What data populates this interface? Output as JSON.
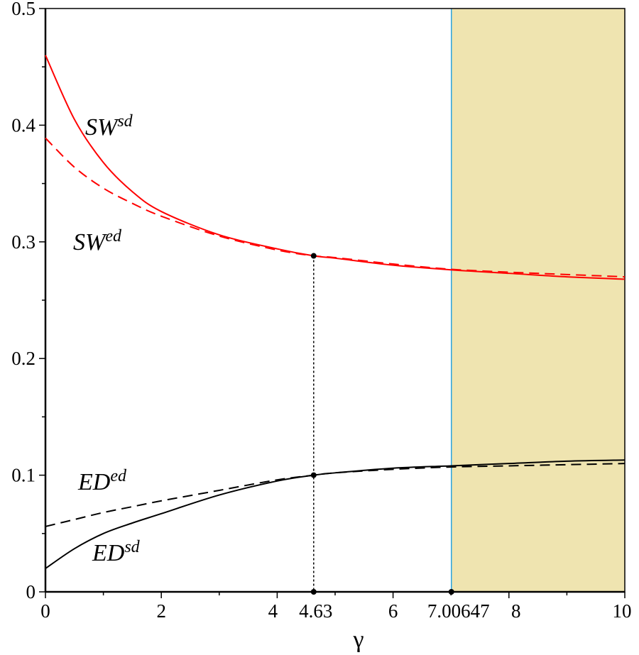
{
  "chart_data": {
    "type": "line",
    "xlabel": "γ",
    "ylabel": "",
    "xlim": [
      0,
      10
    ],
    "ylim": [
      0,
      0.5
    ],
    "grid": false,
    "x_ticks": [
      "0",
      "2",
      "4",
      "4.63",
      "6",
      "7.00647",
      "8",
      "10"
    ],
    "x_tick_values": [
      0,
      2,
      4,
      4.63,
      6,
      7.00647,
      8,
      10
    ],
    "y_ticks": [
      "0",
      "0.1",
      "0.2",
      "0.3",
      "0.4",
      "0.5"
    ],
    "y_tick_values": [
      0,
      0.1,
      0.2,
      0.3,
      0.4,
      0.5
    ],
    "x": [
      0,
      0.5,
      1,
      1.5,
      2,
      3,
      4,
      4.63,
      5,
      6,
      7,
      8,
      9,
      10
    ],
    "series": [
      {
        "name": "SW^sd",
        "base": "SW",
        "sup": "sd",
        "color": "#ff0000",
        "style": "solid",
        "values": [
          0.46,
          0.405,
          0.368,
          0.343,
          0.326,
          0.306,
          0.294,
          0.288,
          0.286,
          0.28,
          0.276,
          0.273,
          0.27,
          0.268
        ]
      },
      {
        "name": "SW^ed",
        "base": "SW",
        "sup": "ed",
        "color": "#ff0000",
        "style": "dashed",
        "values": [
          0.389,
          0.364,
          0.346,
          0.333,
          0.322,
          0.305,
          0.293,
          0.288,
          0.2865,
          0.281,
          0.2765,
          0.274,
          0.272,
          0.27
        ]
      },
      {
        "name": "ED^ed",
        "base": "ED",
        "sup": "ed",
        "color": "#000000",
        "style": "dashed",
        "values": [
          0.056,
          0.062,
          0.068,
          0.073,
          0.078,
          0.087,
          0.096,
          0.1,
          0.102,
          0.105,
          0.107,
          0.108,
          0.109,
          0.11
        ]
      },
      {
        "name": "ED^sd",
        "base": "ED",
        "sup": "sd",
        "color": "#000000",
        "style": "solid",
        "values": [
          0.02,
          0.037,
          0.05,
          0.059,
          0.067,
          0.083,
          0.095,
          0.1,
          0.102,
          0.106,
          0.108,
          0.11,
          0.112,
          0.113
        ]
      }
    ],
    "shaded_region": {
      "x_from": 7.00647,
      "x_to": 10,
      "color": "#efe4b0"
    },
    "vertical_line": {
      "x": 7.00647,
      "color": "#29a3e0"
    },
    "intersection": {
      "x": 4.63,
      "points": [
        0.288,
        0.1
      ]
    },
    "marked_points": [
      [
        4.63,
        0.288
      ],
      [
        4.63,
        0.1
      ],
      [
        4.63,
        0
      ],
      [
        7.00647,
        0
      ]
    ]
  }
}
